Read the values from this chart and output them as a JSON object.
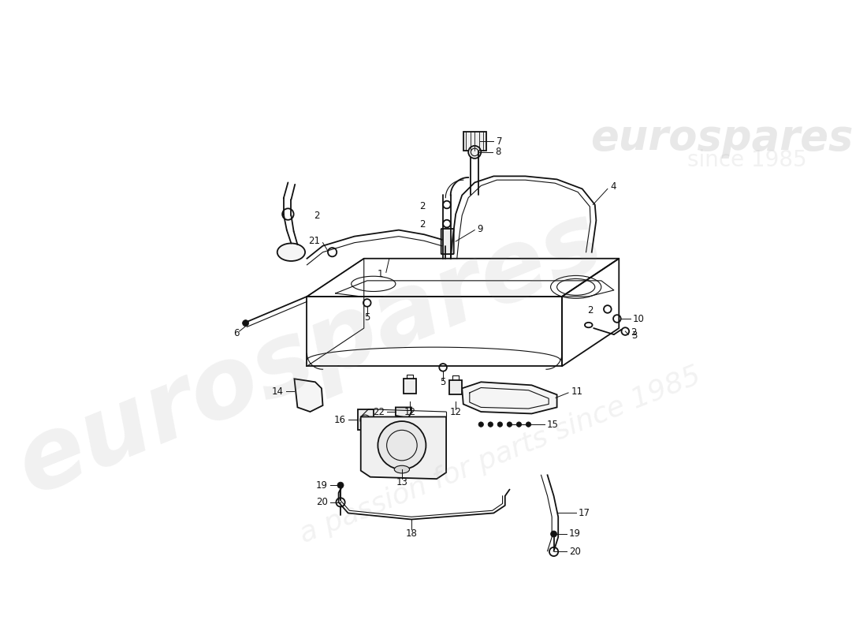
{
  "bg_color": "#ffffff",
  "line_color": "#111111",
  "label_color": "#111111",
  "label_fontsize": 8.5,
  "wm1_text": "eurospares",
  "wm2_text": "a passion for parts since 1985",
  "wm_top_text": "eurospares",
  "wm_top_subtext": "since 1985"
}
